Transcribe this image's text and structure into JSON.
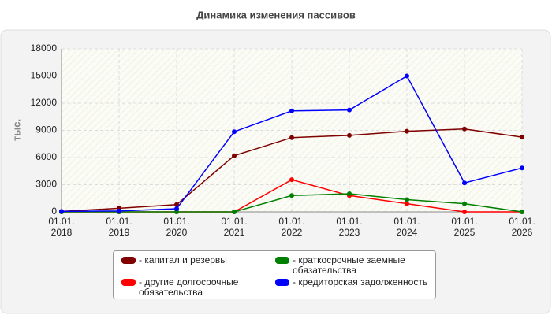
{
  "chart_data": {
    "type": "line",
    "title": "Динамика изменения пассивов",
    "y_label": "тыс.",
    "categories": [
      "01.01.\n2018",
      "01.01.\n2019",
      "01.01.\n2020",
      "01.01.\n2021",
      "01.01.\n2022",
      "01.01.\n2023",
      "01.01.\n2024",
      "01.01.\n2025",
      "01.01.\n2026"
    ],
    "series": [
      {
        "name": "- капитал и резервы",
        "color": "#800000",
        "values": [
          50,
          400,
          800,
          6200,
          8200,
          8450,
          8900,
          9150,
          8250
        ]
      },
      {
        "name": "- другие долгосрочные обязательства",
        "color": "#ff0000",
        "values": [
          0,
          0,
          0,
          0,
          3550,
          1800,
          900,
          0,
          0
        ]
      },
      {
        "name": "- краткосрочные заемные обязательства",
        "color": "#008000",
        "values": [
          0,
          0,
          0,
          0,
          1800,
          2000,
          1350,
          900,
          0
        ]
      },
      {
        "name": "- кредиторская задолженность",
        "color": "#0000ff",
        "values": [
          50,
          100,
          350,
          8850,
          11150,
          11250,
          15000,
          3200,
          4850
        ]
      }
    ],
    "ylim": [
      0,
      18000
    ],
    "yticks": [
      0,
      3000,
      6000,
      9000,
      12000,
      15000,
      18000
    ],
    "grid": true
  }
}
